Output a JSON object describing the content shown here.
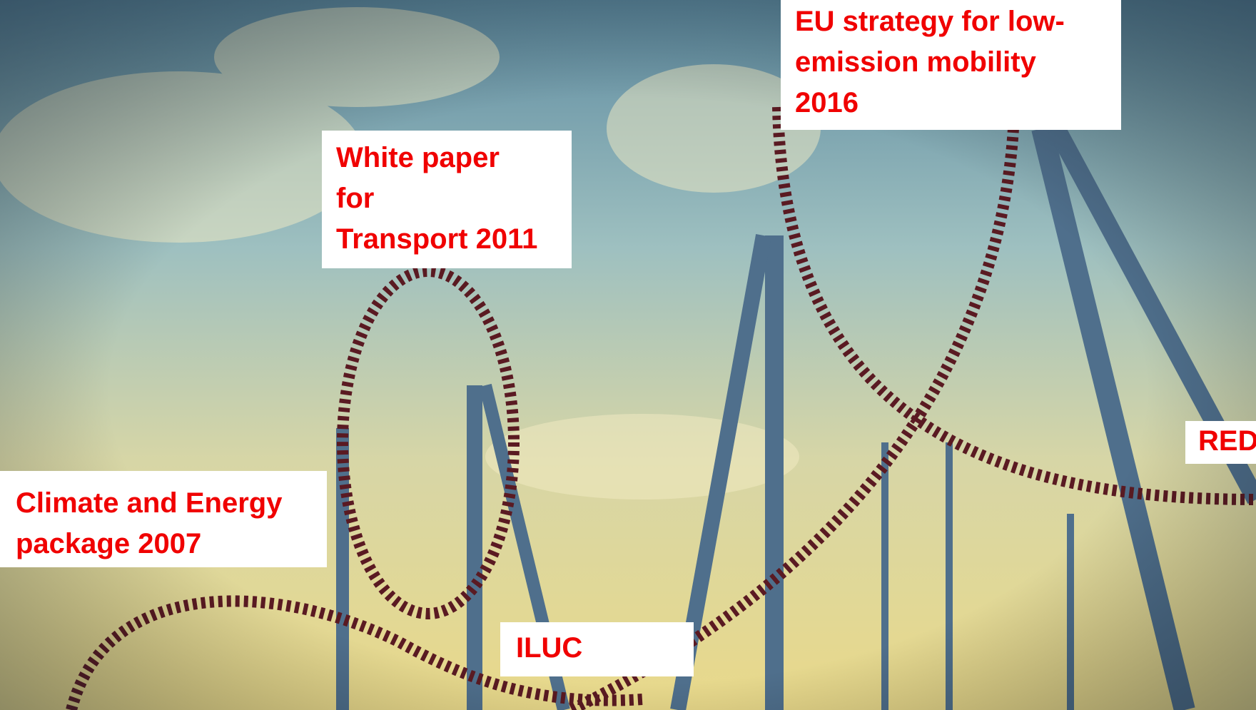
{
  "labels": [
    {
      "lines": [
        "Climate and Energy",
        "package 2007"
      ]
    },
    {
      "lines": [
        "White paper",
        "for",
        "Transport 2011"
      ]
    },
    {
      "lines": [
        "EU strategy for low-",
        "emission mobility",
        "2016"
      ]
    },
    {
      "lines": [
        "ILUC"
      ]
    },
    {
      "lines": [
        "RED"
      ]
    }
  ]
}
